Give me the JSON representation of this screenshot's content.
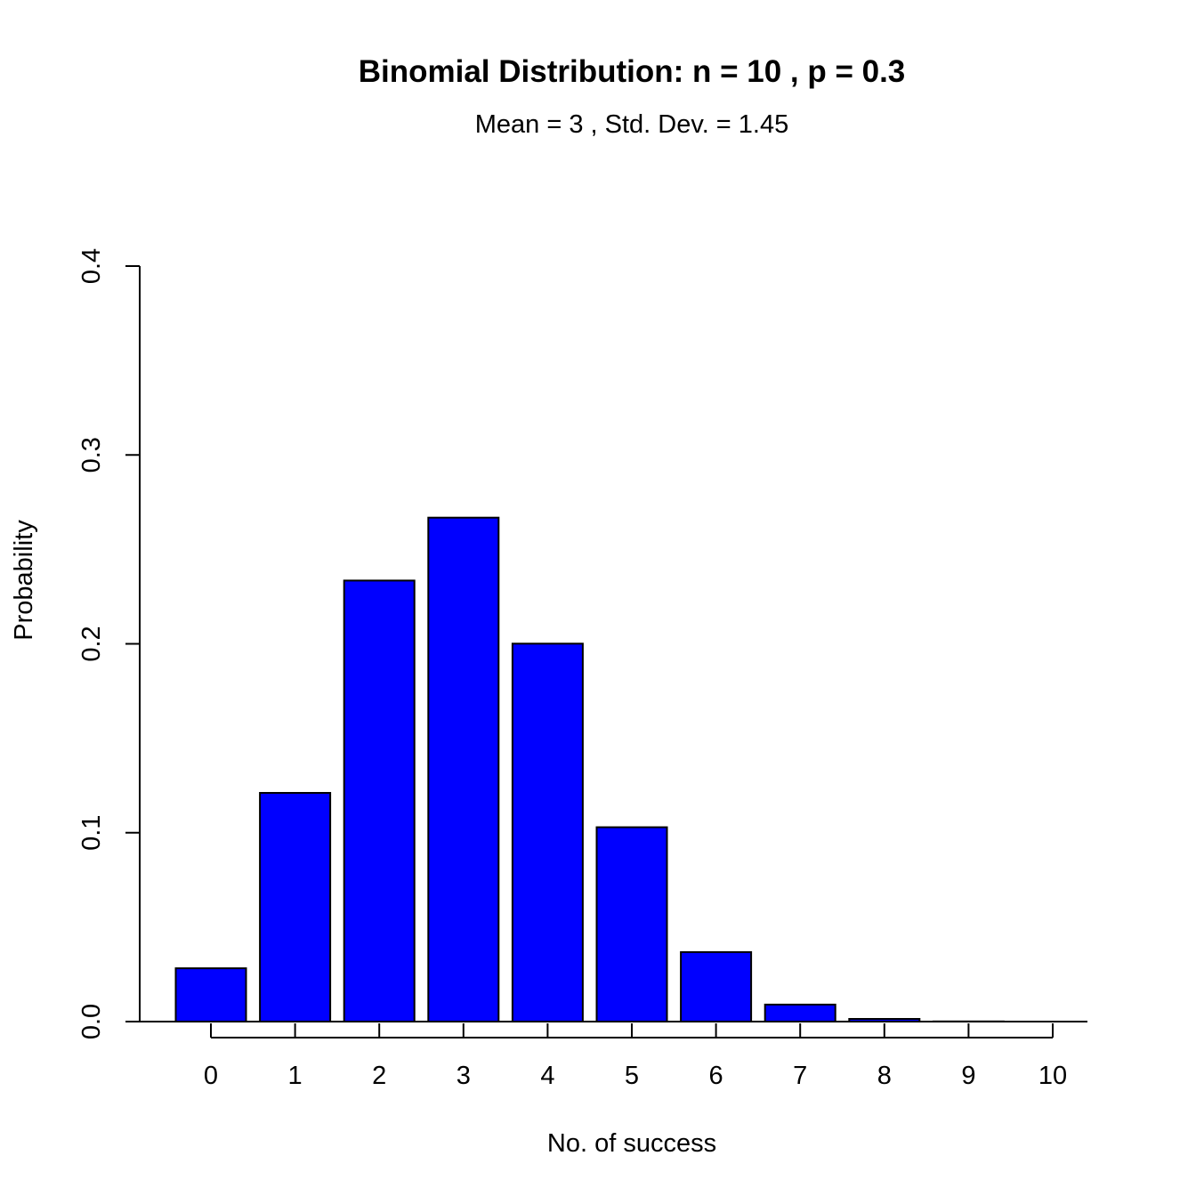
{
  "chart_data": {
    "type": "bar",
    "title": "Binomial Distribution: n = 10 , p = 0.3",
    "subtitle": "Mean = 3 , Std. Dev. = 1.45",
    "xlabel": "No. of success",
    "ylabel": "Probability",
    "categories": [
      "0",
      "1",
      "2",
      "3",
      "4",
      "5",
      "6",
      "7",
      "8",
      "9",
      "10"
    ],
    "values": [
      0.0282,
      0.1211,
      0.2335,
      0.2668,
      0.2001,
      0.1029,
      0.0368,
      0.009,
      0.0014,
      0.0001,
      0.0
    ],
    "ylim": [
      0,
      0.4
    ],
    "yticks": [
      "0.0",
      "0.1",
      "0.2",
      "0.3",
      "0.4"
    ],
    "bar_color": "#0000ff",
    "grid": false
  }
}
